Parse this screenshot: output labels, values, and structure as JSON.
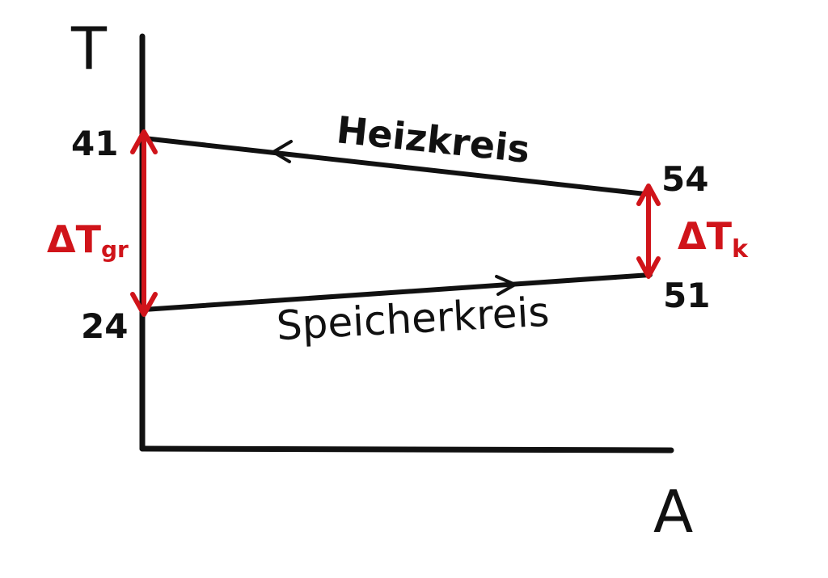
{
  "axes": {
    "y_label": "T",
    "x_label": "A"
  },
  "heizkreis": {
    "label": "Heizkreis",
    "start_value": "54",
    "end_value": "41"
  },
  "speicherkreis": {
    "label": "Speicherkreis",
    "start_value": "24",
    "end_value": "51"
  },
  "delta_gr": {
    "symbol": "ΔT",
    "subscript": "gr"
  },
  "delta_k": {
    "symbol": "ΔT",
    "subscript": "k"
  },
  "colors": {
    "ink": "#111111",
    "accent": "#d0141a",
    "background": "#ffffff"
  }
}
